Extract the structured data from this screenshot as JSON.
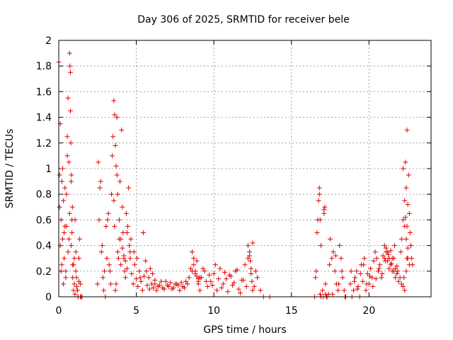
{
  "chart_data": {
    "type": "scatter",
    "title": "Day 306 of 2025, SRMTID for receiver bele",
    "xlabel": "GPS time / hours",
    "ylabel": "SRMTID / TECUs",
    "xlim": [
      0,
      24
    ],
    "ylim": [
      0,
      2
    ],
    "xticks": [
      "0",
      "5",
      "10",
      "15",
      "20"
    ],
    "xtick_values": [
      0,
      5,
      10,
      15,
      20
    ],
    "yticks": [
      "0",
      "0.2",
      "0.4",
      "0.6",
      "0.8",
      "1",
      "1.2",
      "1.4",
      "1.6",
      "1.8",
      "2"
    ],
    "ytick_values": [
      0,
      0.2,
      0.4,
      0.6,
      0.8,
      1.0,
      1.2,
      1.4,
      1.6,
      1.8,
      2.0
    ],
    "grid": true,
    "marker": "+",
    "color": "#e00000",
    "series": [
      {
        "name": "SRMTID",
        "x": [
          0.0,
          0.05,
          0.1,
          0.15,
          0.2,
          0.25,
          0.3,
          0.35,
          0.4,
          0.45,
          0.5,
          0.55,
          0.6,
          0.65,
          0.7,
          0.75,
          0.8,
          0.85,
          0.9,
          0.95,
          1.0,
          1.05,
          1.1,
          1.15,
          1.2,
          1.25,
          1.3,
          1.35,
          1.4,
          1.45,
          1.5,
          0.05,
          0.1,
          0.2,
          0.3,
          0.4,
          0.5,
          0.6,
          0.7,
          0.75,
          0.8,
          0.85,
          0.9,
          1.0,
          1.1,
          1.2,
          1.3,
          1.4,
          0.15,
          0.25,
          0.35,
          0.45,
          0.55,
          0.65,
          0.72,
          0.78,
          0.82,
          0.88,
          0.95,
          1.05,
          1.15,
          1.25,
          2.5,
          2.6,
          2.7,
          2.8,
          2.9,
          3.0,
          3.1,
          3.2,
          3.3,
          3.4,
          3.5,
          3.6,
          3.7,
          3.8,
          3.9,
          4.0,
          4.1,
          4.2,
          4.3,
          4.4,
          4.5,
          4.6,
          2.55,
          2.75,
          2.95,
          3.15,
          3.35,
          3.55,
          3.75,
          3.95,
          4.15,
          4.35,
          4.55,
          2.65,
          2.85,
          3.05,
          3.25,
          3.45,
          3.65,
          3.85,
          4.05,
          4.25,
          4.45,
          3.55,
          3.6,
          3.65,
          3.7,
          3.75,
          3.8,
          3.9,
          4.0,
          4.1,
          4.2,
          4.3,
          4.4,
          4.6,
          4.7,
          4.8,
          4.9,
          5.0,
          5.1,
          5.2,
          5.3,
          5.4,
          5.5,
          5.6,
          5.7,
          5.8,
          5.9,
          6.0,
          6.1,
          6.2,
          4.65,
          4.85,
          5.05,
          5.25,
          5.45,
          5.65,
          5.85,
          6.05,
          6.2,
          6.4,
          6.6,
          6.8,
          7.0,
          7.2,
          7.4,
          7.6,
          7.8,
          8.0,
          8.2,
          8.4,
          8.6,
          8.8,
          9.0,
          6.3,
          6.5,
          6.7,
          6.9,
          7.1,
          7.3,
          7.5,
          7.7,
          7.9,
          8.1,
          8.3,
          8.5,
          8.7,
          8.9,
          8.6,
          8.7,
          8.8,
          8.9,
          9.0,
          9.1,
          9.0,
          9.2,
          9.4,
          9.6,
          9.8,
          10.0,
          10.2,
          10.4,
          10.6,
          10.8,
          11.0,
          11.2,
          11.4,
          11.6,
          11.8,
          12.0,
          12.2,
          12.4,
          12.6,
          12.8,
          13.0,
          13.2,
          9.1,
          9.3,
          9.5,
          9.7,
          9.9,
          10.1,
          10.3,
          10.5,
          10.7,
          10.9,
          11.1,
          11.3,
          11.5,
          11.7,
          11.9,
          12.1,
          12.3,
          12.5,
          12.7,
          12.2,
          12.3,
          12.35,
          12.4,
          12.45,
          12.5,
          13.6,
          16.5,
          16.6,
          16.7,
          16.8,
          16.9,
          17.0,
          17.1,
          17.2,
          17.3,
          17.4,
          17.5,
          17.6,
          17.7,
          17.8,
          17.9,
          18.0,
          18.1,
          18.2,
          18.3,
          18.4,
          18.5,
          16.55,
          16.65,
          16.75,
          16.85,
          17.05,
          17.25,
          17.45,
          17.65,
          17.85,
          18.05,
          18.25,
          18.45,
          16.8,
          16.85,
          16.9,
          17.1,
          17.15,
          17.2,
          18.8,
          18.9,
          19.0,
          19.1,
          19.2,
          19.3,
          19.4,
          19.5,
          19.6,
          19.7,
          19.8,
          19.9,
          20.0,
          20.1,
          20.2,
          20.3,
          20.4,
          20.5,
          20.6,
          20.7,
          20.8,
          20.9,
          21.0,
          21.1,
          21.2,
          21.3,
          21.4,
          21.5,
          21.6,
          21.7,
          21.8,
          21.9,
          22.0,
          22.1,
          22.2,
          22.3,
          22.4,
          22.5,
          22.6,
          18.85,
          19.05,
          19.25,
          19.45,
          19.65,
          19.85,
          20.05,
          20.25,
          20.45,
          20.65,
          20.85,
          21.05,
          21.25,
          21.45,
          21.65,
          21.85,
          22.05,
          22.25,
          22.45,
          21.0,
          21.1,
          21.2,
          21.3,
          21.4,
          21.5,
          21.6,
          21.7,
          21.8,
          22.1,
          22.2,
          22.3,
          22.35,
          22.4,
          22.45,
          22.5,
          22.55,
          22.6,
          22.65,
          22.7,
          22.75,
          22.8,
          22.2,
          22.3,
          22.35,
          22.4,
          22.45,
          22.5
        ],
        "y": [
          1.83,
          0.95,
          1.35,
          0.6,
          0.9,
          0.45,
          0.75,
          0.3,
          0.85,
          0.2,
          0.55,
          1.1,
          1.55,
          1.05,
          1.9,
          1.75,
          0.4,
          0.6,
          0.25,
          0.05,
          0.1,
          0.02,
          0.35,
          0.15,
          0.05,
          0.0,
          0.3,
          0.45,
          0.1,
          0.0,
          0.0,
          0.7,
          0.4,
          0.25,
          0.1,
          0.55,
          0.8,
          0.35,
          0.65,
          1.45,
          0.9,
          0.5,
          0.15,
          0.3,
          0.2,
          0.05,
          0.12,
          0.0,
          0.2,
          1.0,
          0.5,
          0.15,
          1.25,
          0.45,
          1.8,
          1.2,
          0.95,
          0.7,
          0.25,
          0.6,
          0.08,
          0.0,
          0.1,
          0.6,
          0.9,
          0.4,
          0.05,
          0.0,
          0.3,
          0.65,
          0.2,
          0.8,
          1.25,
          0.55,
          0.1,
          0.35,
          0.45,
          0.25,
          0.7,
          0.3,
          0.15,
          0.5,
          0.85,
          0.35,
          1.05,
          0.35,
          0.2,
          0.6,
          0.1,
          0.75,
          1.4,
          0.9,
          0.5,
          0.65,
          0.4,
          0.85,
          0.15,
          0.55,
          0.25,
          1.1,
          0.05,
          0.3,
          1.3,
          0.2,
          0.55,
          1.53,
          1.42,
          1.18,
          1.02,
          0.95,
          0.8,
          0.6,
          0.45,
          0.38,
          0.32,
          0.28,
          0.22,
          0.3,
          0.18,
          0.1,
          0.25,
          0.14,
          0.08,
          0.2,
          0.12,
          0.05,
          0.16,
          0.28,
          0.09,
          0.15,
          0.22,
          0.1,
          0.07,
          0.13,
          0.45,
          0.35,
          0.3,
          0.15,
          0.5,
          0.2,
          0.06,
          0.18,
          0.1,
          0.08,
          0.12,
          0.06,
          0.09,
          0.11,
          0.07,
          0.1,
          0.05,
          0.08,
          0.12,
          0.15,
          0.2,
          0.18,
          0.14,
          0.05,
          0.09,
          0.07,
          0.12,
          0.08,
          0.06,
          0.1,
          0.09,
          0.11,
          0.07,
          0.1,
          0.22,
          0.25,
          0.16,
          0.35,
          0.3,
          0.2,
          0.28,
          0.12,
          0.15,
          0.1,
          0.15,
          0.2,
          0.08,
          0.12,
          0.18,
          0.05,
          0.22,
          0.1,
          0.14,
          0.17,
          0.09,
          0.2,
          0.06,
          0.13,
          0.25,
          0.3,
          0.18,
          0.08,
          0.15,
          0.05,
          0.0,
          0.05,
          0.22,
          0.12,
          0.17,
          0.09,
          0.25,
          0.14,
          0.07,
          0.19,
          0.04,
          0.16,
          0.11,
          0.21,
          0.03,
          0.13,
          0.08,
          0.35,
          0.42,
          0.2,
          0.4,
          0.32,
          0.28,
          0.22,
          0.12,
          0.05,
          0.0,
          0.0,
          0.2,
          0.6,
          0.85,
          0.0,
          0.05,
          0.68,
          0.1,
          0.0,
          0.02,
          0.45,
          0.3,
          0.35,
          0.2,
          0.1,
          0.05,
          0.4,
          0.3,
          0.15,
          0.05,
          0.0,
          0.15,
          0.5,
          0.75,
          0.02,
          0.0,
          0.0,
          0.25,
          0.02,
          0.32,
          0.1,
          0.2,
          0.0,
          0.8,
          0.6,
          0.4,
          0.65,
          0.7,
          0.02,
          0.1,
          0.0,
          0.05,
          0.15,
          0.2,
          0.08,
          0.0,
          0.25,
          0.12,
          0.3,
          0.05,
          0.18,
          0.1,
          0.22,
          0.15,
          0.28,
          0.35,
          0.3,
          0.2,
          0.25,
          0.15,
          0.32,
          0.4,
          0.38,
          0.35,
          0.3,
          0.25,
          0.2,
          0.3,
          0.22,
          0.18,
          0.12,
          0.15,
          0.1,
          0.08,
          0.05,
          0.2,
          0.3,
          0.25,
          0.2,
          0.12,
          0.06,
          0.18,
          0.25,
          0.1,
          0.16,
          0.08,
          0.14,
          0.22,
          0.18,
          0.28,
          0.33,
          0.26,
          0.4,
          0.2,
          0.35,
          0.15,
          0.3,
          0.3,
          0.35,
          0.28,
          0.22,
          0.36,
          0.3,
          0.2,
          0.15,
          0.24,
          0.45,
          0.6,
          0.55,
          1.05,
          0.85,
          1.3,
          0.72,
          0.95,
          0.65,
          0.5,
          0.4,
          0.3,
          0.25,
          1.0,
          0.75,
          0.62,
          0.45,
          0.55,
          0.38
        ]
      }
    ]
  }
}
